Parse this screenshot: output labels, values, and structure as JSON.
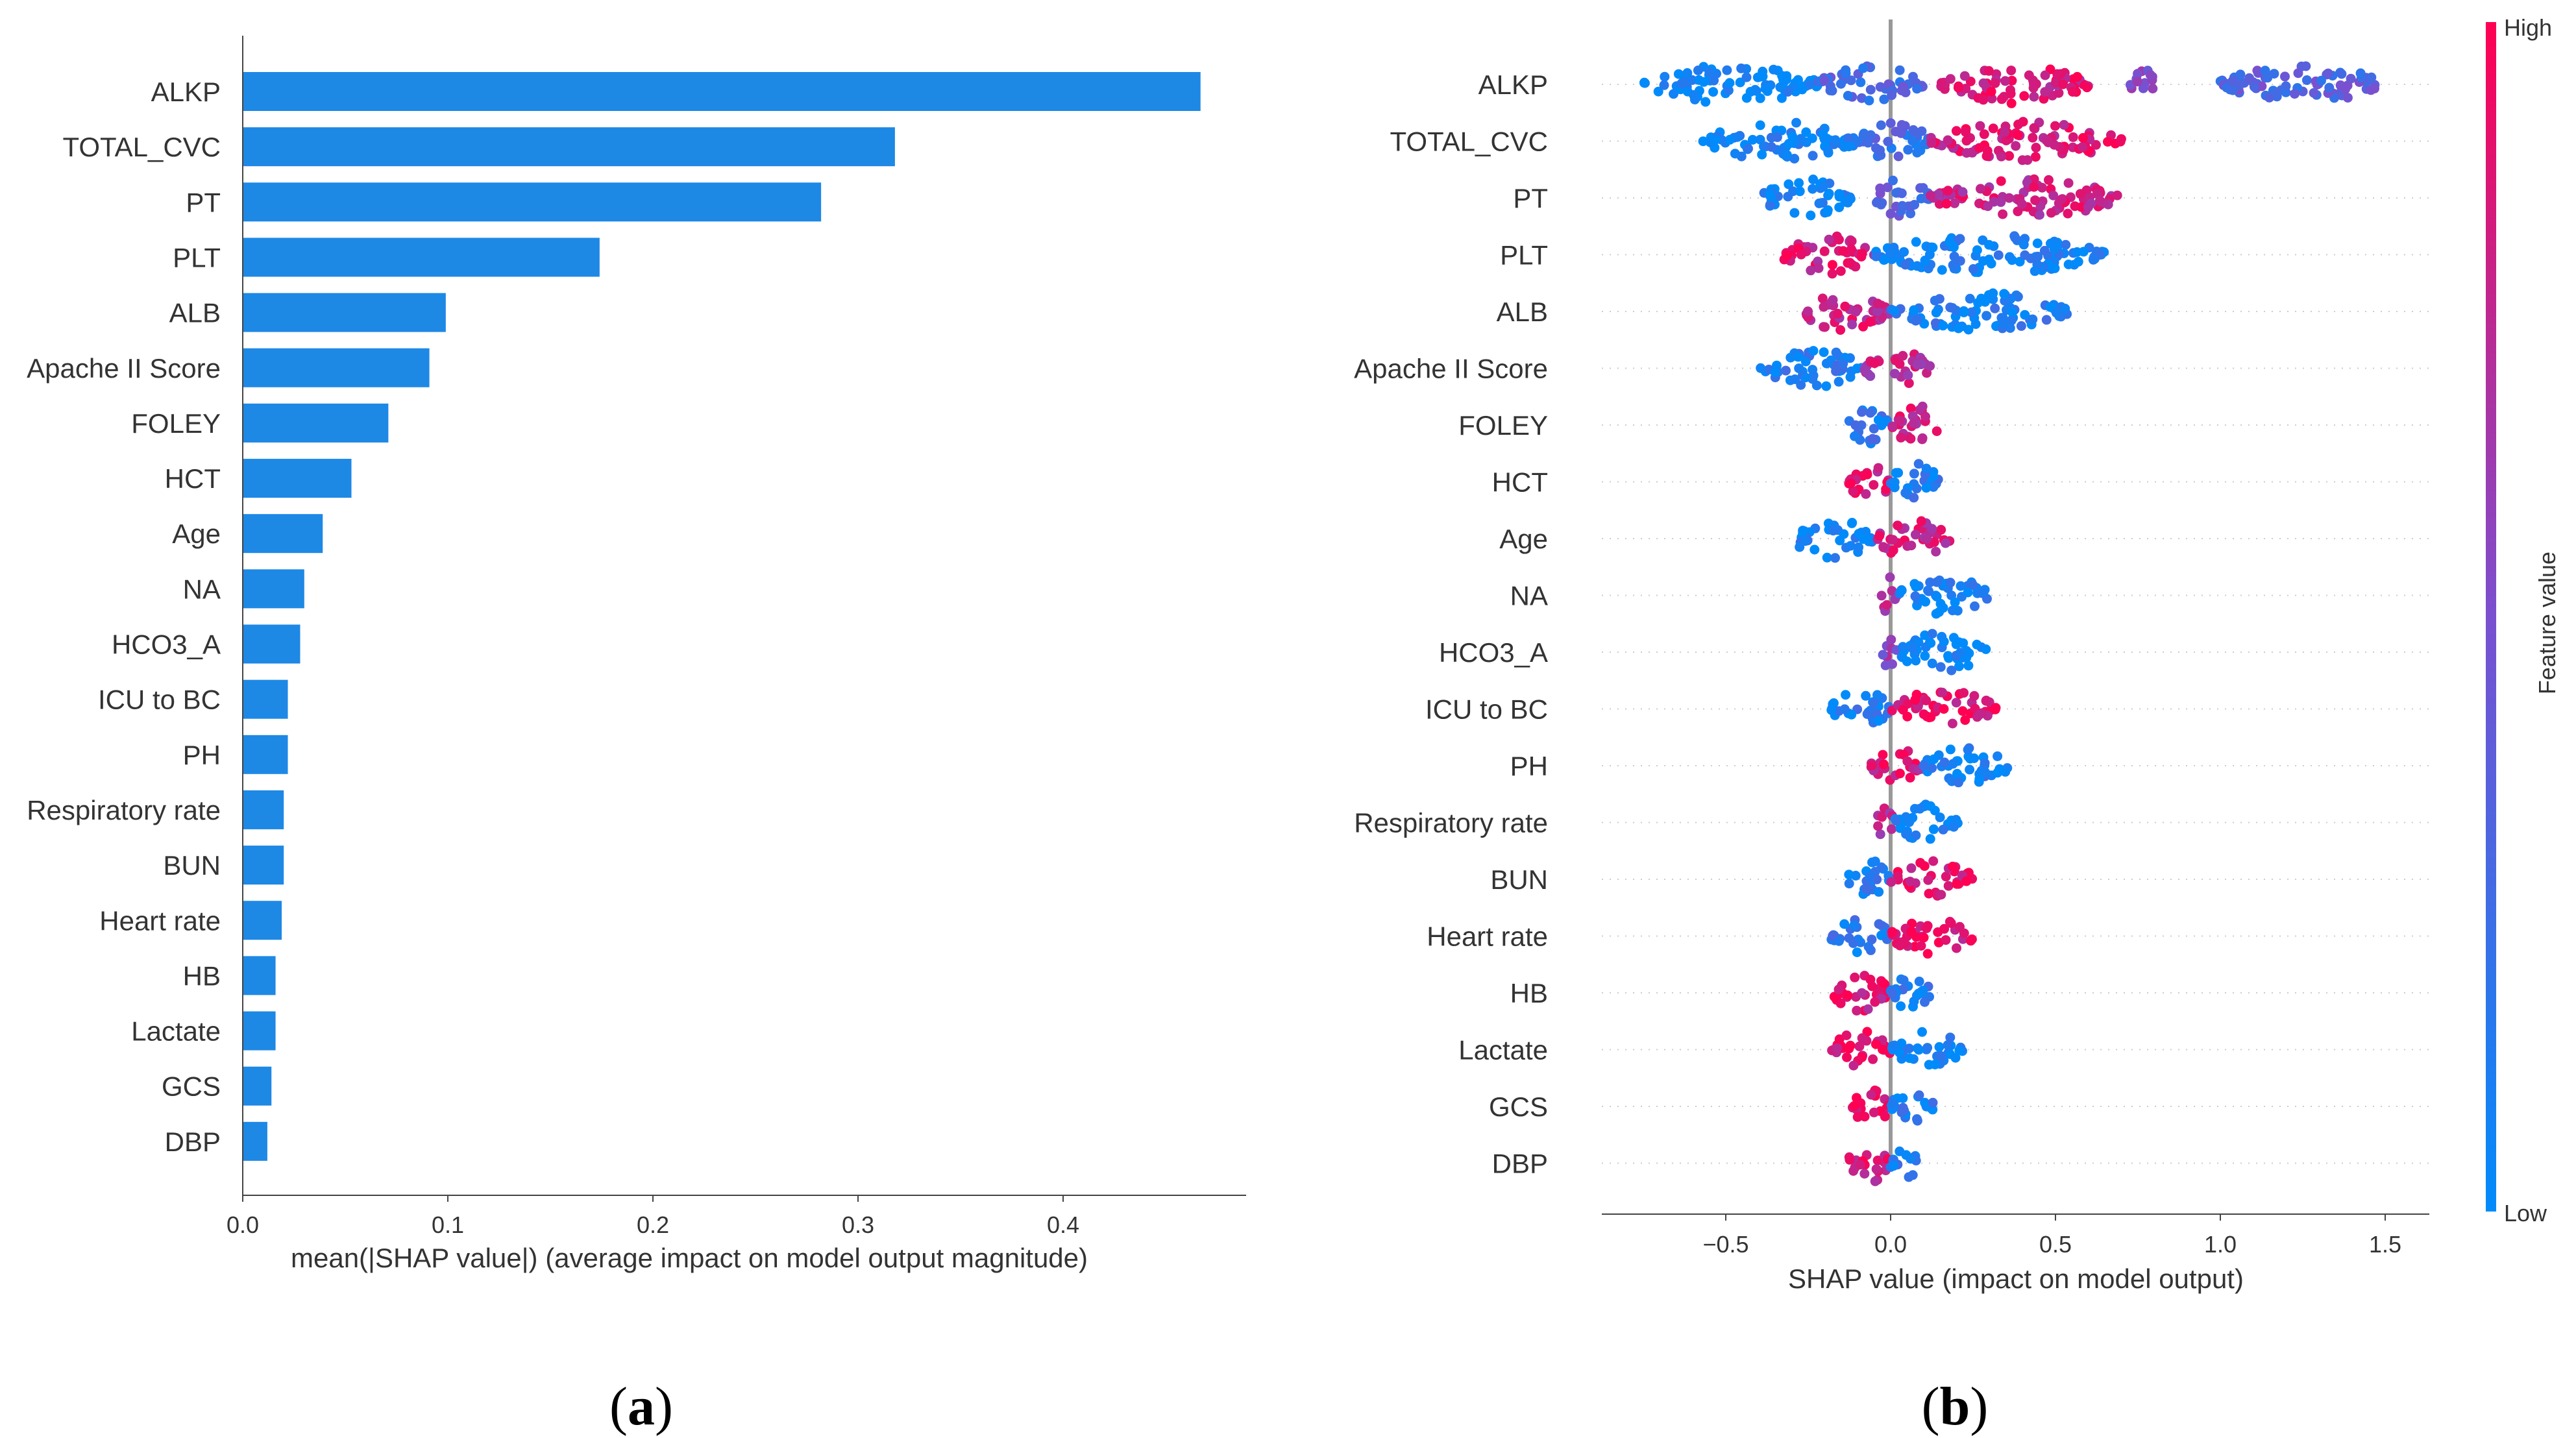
{
  "chart_data": [
    {
      "type": "bar",
      "panel_label": "(a)",
      "xlabel": "mean(|SHAP value|) (average impact on model output magnitude)",
      "xlim": [
        0,
        0.49
      ],
      "xticks": [
        "0.0",
        "0.1",
        "0.2",
        "0.3",
        "0.4"
      ],
      "bar_color": "#1E88E5",
      "categories": [
        "ALKP",
        "TOTAL_CVC",
        "PT",
        "PLT",
        "ALB",
        "Apache II Score",
        "FOLEY",
        "HCT",
        "Age",
        "NA",
        "HCO3_A",
        "ICU to BC",
        "PH",
        "Respiratory rate",
        "BUN",
        "Heart rate",
        "HB",
        "Lactate",
        "GCS",
        "DBP"
      ],
      "values": [
        0.467,
        0.318,
        0.282,
        0.174,
        0.099,
        0.091,
        0.071,
        0.053,
        0.039,
        0.03,
        0.028,
        0.022,
        0.022,
        0.02,
        0.02,
        0.019,
        0.016,
        0.016,
        0.014,
        0.012
      ]
    },
    {
      "type": "scatter",
      "subtype": "beeswarm",
      "panel_label": "(b)",
      "xlabel": "SHAP value (impact on model output)",
      "xlim": [
        -0.87,
        1.64
      ],
      "xticks": [
        "−0.5",
        "0.0",
        "0.5",
        "1.0",
        "1.5"
      ],
      "colorbar": {
        "label": "Feature value",
        "high": "High",
        "low": "Low",
        "low_color": "#008BFB",
        "high_color": "#FF0052"
      },
      "features": [
        {
          "name": "ALKP",
          "spans": [
            [
              -0.75,
              -0.22,
              0.0
            ],
            [
              -0.22,
              0.1,
              0.3
            ],
            [
              0.15,
              0.6,
              0.85
            ],
            [
              0.72,
              0.8,
              0.5
            ],
            [
              1.0,
              1.5,
              0.35
            ]
          ]
        },
        {
          "name": "TOTAL_CVC",
          "spans": [
            [
              -0.57,
              -0.1,
              0.05
            ],
            [
              -0.1,
              0.12,
              0.25
            ],
            [
              0.12,
              0.7,
              0.85
            ]
          ]
        },
        {
          "name": "PT",
          "spans": [
            [
              -0.4,
              -0.12,
              0.05
            ],
            [
              -0.05,
              0.12,
              0.35
            ],
            [
              0.12,
              0.7,
              0.8
            ]
          ]
        },
        {
          "name": "PLT",
          "spans": [
            [
              -0.33,
              -0.05,
              0.85
            ],
            [
              -0.05,
              0.65,
              0.05
            ]
          ]
        },
        {
          "name": "ALB",
          "spans": [
            [
              -0.28,
              0.0,
              0.8
            ],
            [
              0.0,
              0.54,
              0.1
            ]
          ]
        },
        {
          "name": "Apache II Score",
          "spans": [
            [
              -0.4,
              -0.08,
              0.1
            ],
            [
              -0.08,
              0.12,
              0.75
            ]
          ]
        },
        {
          "name": "FOLEY",
          "spans": [
            [
              -0.13,
              0.0,
              0.15
            ],
            [
              0.0,
              0.16,
              0.8
            ]
          ]
        },
        {
          "name": "HCT",
          "spans": [
            [
              -0.13,
              0.0,
              0.85
            ],
            [
              0.0,
              0.15,
              0.1
            ]
          ]
        },
        {
          "name": "Age",
          "spans": [
            [
              -0.3,
              -0.05,
              0.05
            ],
            [
              -0.05,
              0.18,
              0.8
            ]
          ]
        },
        {
          "name": "NA",
          "spans": [
            [
              -0.03,
              0.02,
              0.7
            ],
            [
              0.02,
              0.3,
              0.05
            ]
          ]
        },
        {
          "name": "HCO3_A",
          "spans": [
            [
              -0.03,
              0.02,
              0.6
            ],
            [
              0.02,
              0.29,
              0.05
            ]
          ]
        },
        {
          "name": "ICU to BC",
          "spans": [
            [
              -0.18,
              0.0,
              0.1
            ],
            [
              0.0,
              0.32,
              0.9
            ]
          ]
        },
        {
          "name": "PH",
          "spans": [
            [
              -0.06,
              0.1,
              0.85
            ],
            [
              0.1,
              0.36,
              0.1
            ]
          ]
        },
        {
          "name": "Respiratory rate",
          "spans": [
            [
              -0.04,
              0.01,
              0.7
            ],
            [
              0.01,
              0.21,
              0.05
            ]
          ]
        },
        {
          "name": "BUN",
          "spans": [
            [
              -0.13,
              0.0,
              0.1
            ],
            [
              0.0,
              0.25,
              0.9
            ]
          ]
        },
        {
          "name": "Heart rate",
          "spans": [
            [
              -0.18,
              0.0,
              0.15
            ],
            [
              0.0,
              0.25,
              0.9
            ]
          ]
        },
        {
          "name": "HB",
          "spans": [
            [
              -0.18,
              0.0,
              0.85
            ],
            [
              0.0,
              0.14,
              0.1
            ]
          ]
        },
        {
          "name": "Lactate",
          "spans": [
            [
              -0.18,
              0.0,
              0.9
            ],
            [
              0.0,
              0.22,
              0.05
            ]
          ]
        },
        {
          "name": "GCS",
          "spans": [
            [
              -0.12,
              0.0,
              0.9
            ],
            [
              0.0,
              0.13,
              0.1
            ]
          ]
        },
        {
          "name": "DBP",
          "spans": [
            [
              -0.13,
              0.0,
              0.85
            ],
            [
              0.0,
              0.08,
              0.1
            ]
          ]
        }
      ]
    }
  ]
}
